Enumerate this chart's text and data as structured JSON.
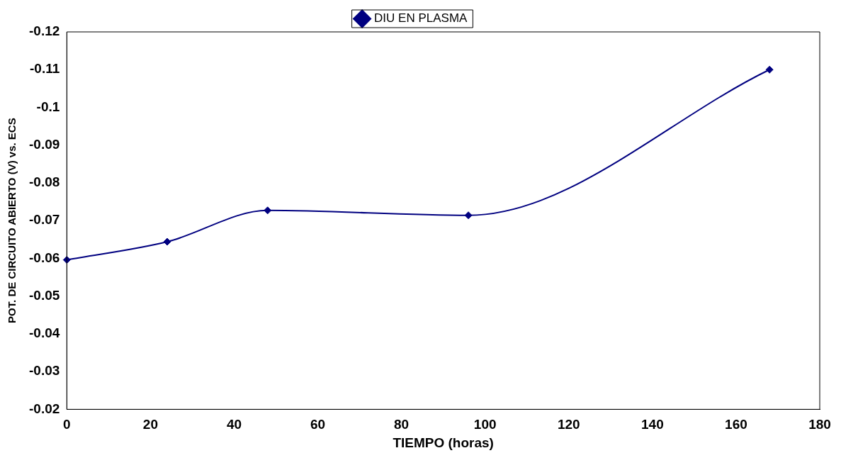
{
  "chart_data": {
    "type": "line",
    "xlabel": "TIEMPO (horas)",
    "ylabel": "POT. DE CIRCUITO ABIERTO (V) vs. ECS",
    "x": [
      0,
      24,
      48,
      96,
      168
    ],
    "series": [
      {
        "name": "DIU EN PLASMA",
        "color": "#000080",
        "values": [
          -0.0596,
          -0.0644,
          -0.0727,
          -0.0714,
          -0.11
        ]
      }
    ],
    "xlim": [
      0,
      180
    ],
    "xticks": [
      0,
      20,
      40,
      60,
      80,
      100,
      120,
      140,
      160,
      180
    ],
    "ylim": [
      -0.02,
      -0.12
    ],
    "yticks": [
      -0.02,
      -0.03,
      -0.04,
      -0.05,
      -0.06,
      -0.07,
      -0.08,
      -0.09,
      -0.1,
      -0.11,
      -0.12
    ],
    "grid": false,
    "legend": "top",
    "marker": "diamond",
    "line_style": "solid"
  }
}
